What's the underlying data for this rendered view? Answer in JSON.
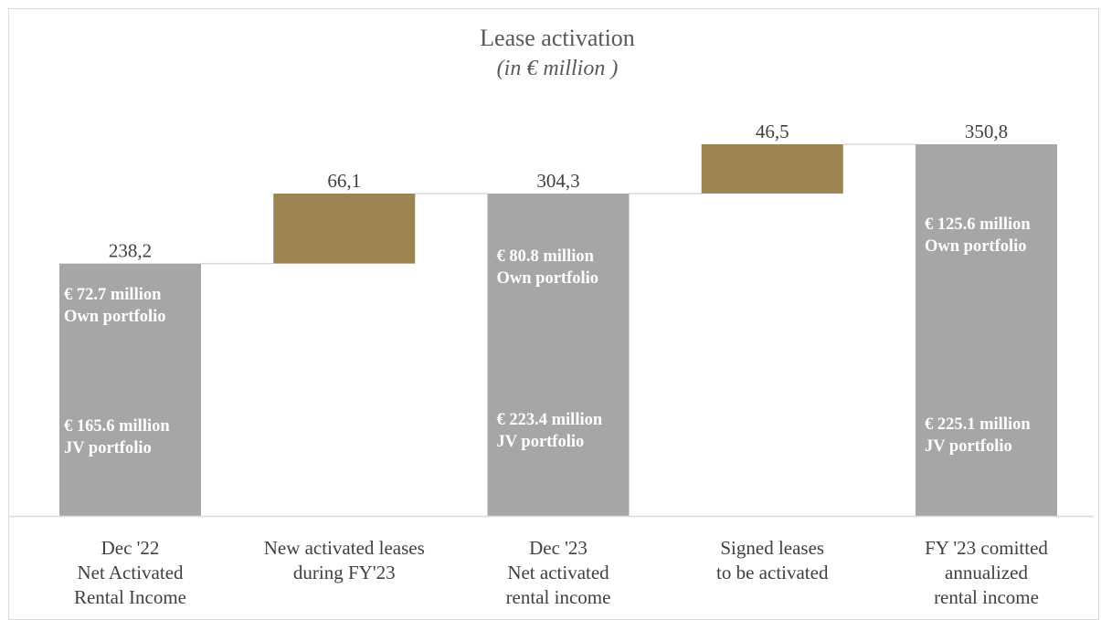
{
  "chart_data": {
    "type": "bar",
    "subtype": "waterfall",
    "title": "Lease activation",
    "subtitle": "(in € million )",
    "categories": [
      [
        "Dec '22",
        "Net Activated",
        "Rental Income"
      ],
      [
        "New activated leases",
        "during FY'23"
      ],
      [
        "Dec '23",
        "Net activated",
        "rental income"
      ],
      [
        "Signed leases",
        "to be activated"
      ],
      [
        "FY '23 comitted",
        "annualized",
        "rental income"
      ]
    ],
    "bars": [
      {
        "kind": "total",
        "start": 0,
        "end": 238.2,
        "label": "238,2"
      },
      {
        "kind": "increase",
        "start": 238.2,
        "end": 304.3,
        "label": "66,1"
      },
      {
        "kind": "total",
        "start": 0,
        "end": 304.3,
        "label": "304,3"
      },
      {
        "kind": "increase",
        "start": 304.3,
        "end": 350.8,
        "label": "46,5"
      },
      {
        "kind": "total",
        "start": 0,
        "end": 350.8,
        "label": "350,8"
      }
    ],
    "annotations": [
      {
        "bar": 0,
        "top": [
          "€ 72.7 million",
          "Own portfolio"
        ],
        "bottom": [
          "€ 165.6 million",
          "JV portfolio"
        ]
      },
      {
        "bar": 2,
        "top": [
          "€ 80.8 million",
          "Own portfolio"
        ],
        "bottom": [
          "€ 223.4 million",
          "JV portfolio"
        ]
      },
      {
        "bar": 4,
        "top": [
          "€ 125.6 million",
          "Own portfolio"
        ],
        "bottom": [
          "€ 225.1 million",
          "JV portfolio"
        ]
      }
    ],
    "ylim": [
      0,
      350.8
    ],
    "colors": {
      "total": "#a6a6a6",
      "increase": "#9c8553",
      "connector": "#d9d9d9",
      "axis": "#d9d9d9"
    },
    "grid": false,
    "legend": "none"
  }
}
